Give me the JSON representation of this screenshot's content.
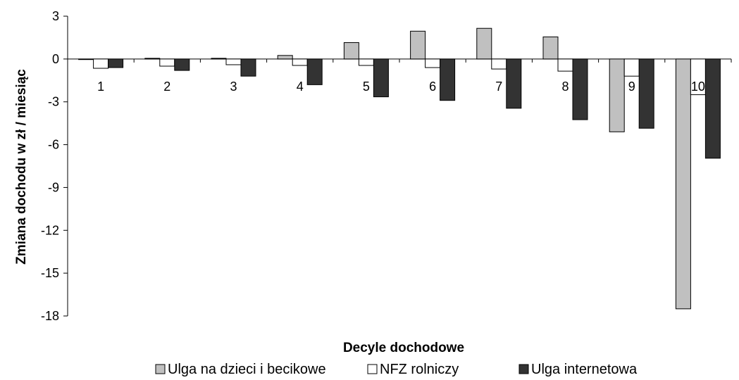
{
  "chart_data": {
    "type": "bar",
    "xlabel": "Decyle dochodowe",
    "ylabel": "Zmiana dochodu w zł / miesiąc",
    "ylim": [
      -18,
      3
    ],
    "yticks": [
      3,
      0,
      -3,
      -6,
      -9,
      -12,
      -15,
      -18
    ],
    "categories": [
      "1",
      "2",
      "3",
      "4",
      "5",
      "6",
      "7",
      "8",
      "9",
      "10"
    ],
    "series": [
      {
        "name": "Ulga na dzieci i becikowe",
        "color": "#c0c0c0",
        "values": [
          0,
          0.05,
          0.05,
          0.25,
          1.15,
          1.95,
          2.15,
          1.55,
          -5.1,
          -17.5
        ]
      },
      {
        "name": "NFZ rolniczy",
        "color": "#ffffff",
        "values": [
          -0.65,
          -0.5,
          -0.4,
          -0.45,
          -0.45,
          -0.6,
          -0.7,
          -0.85,
          -1.2,
          -2.5
        ]
      },
      {
        "name": "Ulga internetowa",
        "color": "#333333",
        "values": [
          -0.6,
          -0.8,
          -1.2,
          -1.8,
          -2.65,
          -2.9,
          -3.45,
          -4.25,
          -4.85,
          -6.95
        ]
      }
    ],
    "grid": false,
    "legend_position": "bottom"
  }
}
